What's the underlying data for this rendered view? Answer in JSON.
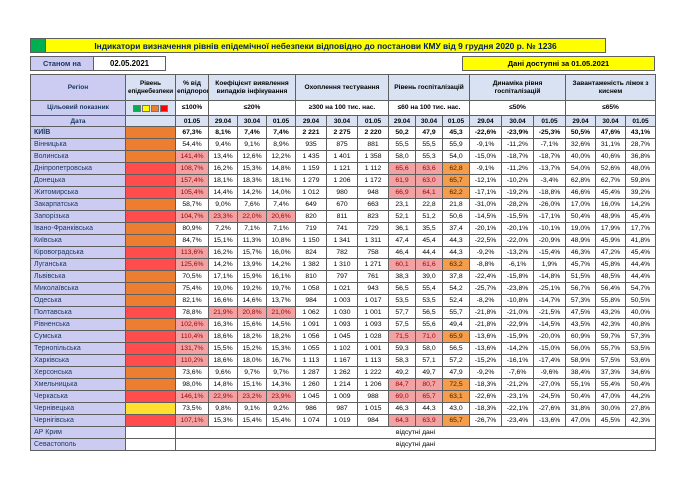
{
  "title": "Індикатори визначення рівнів епідемічної небезпеки відповідно до постанови КМУ від 9 грудня 2020 р. № 1236",
  "as_of": {
    "label": "Станом на",
    "date": "02.05.2021"
  },
  "available_note": "Дані доступні за 01.05.2021",
  "colors": {
    "title_bg": "#ffff00",
    "title_text": "#002060",
    "header_bg": "#d9e2f3",
    "region_col_bg": "#ccccf2",
    "green_marker": "#00b050",
    "level_orange": "#ed7d31",
    "level_red": "#ff4c4c",
    "level_yellow": "#ffe02e",
    "highlight_pink_bg": "#f2a2a2",
    "highlight_pink_text": "#9c0006",
    "highlight_orange_bg": "#f59d4a",
    "legend": [
      "#00b050",
      "#ffff00",
      "#ed7d31",
      "#ff0000"
    ]
  },
  "table": {
    "region_header": "Регіон",
    "level_header": "Рівень епіднебезпеки",
    "target_label": "Цільовий показник",
    "date_label": "Дата",
    "no_data_label": "відсутні дані",
    "groups": [
      {
        "key": "pct",
        "label": "% від епідпорогу",
        "target": "≤100%",
        "dates": [
          "01.05"
        ]
      },
      {
        "key": "coef",
        "label": "Коефіцієнт виявлення випадків інфікування",
        "target": "≤20%",
        "dates": [
          "29.04",
          "30.04",
          "01.05"
        ]
      },
      {
        "key": "test",
        "label": "Охоплення тестування",
        "target": "≥300 на 100 тис. нас.",
        "dates": [
          "29.04",
          "30.04",
          "01.05"
        ]
      },
      {
        "key": "hosp",
        "label": "Рівень госпіталізацій",
        "target": "≤60 на 100 тис. нас.",
        "dates": [
          "29.04",
          "30.04",
          "01.05"
        ]
      },
      {
        "key": "dyn",
        "label": "Динаміка рівня госпіталізацій",
        "target": "≤50%",
        "dates": [
          "29.04",
          "30.04",
          "01.05"
        ]
      },
      {
        "key": "bed",
        "label": "Завантаженість ліжок з киснем",
        "target": "≤65%",
        "dates": [
          "29.04",
          "30.04",
          "01.05"
        ]
      }
    ],
    "rows": [
      {
        "region": "КИЇВ",
        "bold": true,
        "level": "orange",
        "cells": [
          "67,3%",
          "8,1%",
          "7,4%",
          "7,4%",
          "2 221",
          "2 275",
          "2 220",
          "50,2",
          "47,9",
          "45,3",
          "-22,6%",
          "-23,9%",
          "-25,3%",
          "50,5%",
          "47,6%",
          "43,1%"
        ]
      },
      {
        "region": "Вінницька",
        "level": "orange",
        "cells": [
          "54,4%",
          "9,4%",
          "9,1%",
          "8,9%",
          "935",
          "875",
          "881",
          "55,5",
          "55,5",
          "55,9",
          "-9,1%",
          "-11,2%",
          "-7,1%",
          "32,6%",
          "31,1%",
          "28,7%"
        ]
      },
      {
        "region": "Волинська",
        "level": "orange",
        "cells": [
          "141,4%",
          "13,4%",
          "12,6%",
          "12,2%",
          "1 435",
          "1 401",
          "1 358",
          "58,0",
          "55,3",
          "54,0",
          "-15,0%",
          "-18,7%",
          "-18,7%",
          "40,0%",
          "40,6%",
          "36,8%"
        ]
      },
      {
        "region": "Дніпропетровська",
        "level": "red",
        "cells": [
          "108,7%",
          "16,2%",
          "15,3%",
          "14,8%",
          "1 159",
          "1 121",
          "1 112",
          "65,6",
          "63,6",
          "62,8",
          "-9,1%",
          "-11,2%",
          "-13,7%",
          "54,0%",
          "52,6%",
          "48,0%"
        ]
      },
      {
        "region": "Донецька",
        "level": "red",
        "cells": [
          "157,4%",
          "18,1%",
          "18,3%",
          "18,1%",
          "1 279",
          "1 206",
          "1 172",
          "61,9",
          "63,0",
          "65,7",
          "-12,1%",
          "-10,2%",
          "-3,4%",
          "62,8%",
          "62,7%",
          "59,8%"
        ]
      },
      {
        "region": "Житомирська",
        "level": "red",
        "cells": [
          "105,4%",
          "14,4%",
          "14,2%",
          "14,0%",
          "1 012",
          "980",
          "948",
          "66,9",
          "64,1",
          "62,2",
          "-17,1%",
          "-19,2%",
          "-18,8%",
          "46,6%",
          "45,4%",
          "39,2%"
        ]
      },
      {
        "region": "Закарпатська",
        "level": "orange",
        "cells": [
          "58,7%",
          "9,0%",
          "7,6%",
          "7,4%",
          "649",
          "670",
          "663",
          "23,1",
          "22,8",
          "21,8",
          "-31,0%",
          "-28,2%",
          "-26,0%",
          "17,0%",
          "16,0%",
          "14,2%"
        ]
      },
      {
        "region": "Запорізька",
        "level": "red",
        "cells": [
          "104,7%",
          "23,3%",
          "22,0%",
          "20,6%",
          "820",
          "811",
          "823",
          "52,1",
          "51,2",
          "50,6",
          "-14,5%",
          "-15,5%",
          "-17,1%",
          "50,4%",
          "48,9%",
          "45,4%"
        ]
      },
      {
        "region": "Івано-Франківська",
        "level": "orange",
        "cells": [
          "80,9%",
          "7,2%",
          "7,1%",
          "7,1%",
          "719",
          "741",
          "729",
          "36,1",
          "35,5",
          "37,4",
          "-20,1%",
          "-20,1%",
          "-10,1%",
          "19,0%",
          "17,9%",
          "17,7%"
        ]
      },
      {
        "region": "Київська",
        "level": "orange",
        "cells": [
          "84,7%",
          "15,1%",
          "11,3%",
          "10,8%",
          "1 150",
          "1 341",
          "1 311",
          "47,4",
          "45,4",
          "44,3",
          "-22,5%",
          "-22,0%",
          "-20,9%",
          "48,9%",
          "45,9%",
          "41,8%"
        ]
      },
      {
        "region": "Кіровоградська",
        "level": "red",
        "cells": [
          "113,6%",
          "16,2%",
          "15,7%",
          "16,0%",
          "824",
          "782",
          "758",
          "46,4",
          "44,4",
          "44,3",
          "-9,2%",
          "-13,2%",
          "-15,4%",
          "46,3%",
          "47,2%",
          "45,4%"
        ]
      },
      {
        "region": "Луганська",
        "level": "red",
        "cells": [
          "125,6%",
          "14,2%",
          "13,9%",
          "14,2%",
          "1 382",
          "1 310",
          "1 271",
          "60,1",
          "61,6",
          "63,2",
          "-8,8%",
          "-6,1%",
          "1,9%",
          "45,7%",
          "45,8%",
          "44,4%"
        ]
      },
      {
        "region": "Львівська",
        "level": "orange",
        "cells": [
          "70,5%",
          "17,1%",
          "15,9%",
          "16,1%",
          "810",
          "797",
          "761",
          "38,3",
          "39,0",
          "37,8",
          "-22,4%",
          "-15,8%",
          "-14,8%",
          "51,5%",
          "48,5%",
          "44,4%"
        ]
      },
      {
        "region": "Миколаївська",
        "level": "orange",
        "cells": [
          "75,4%",
          "19,0%",
          "19,2%",
          "19,7%",
          "1 058",
          "1 021",
          "943",
          "56,5",
          "55,4",
          "54,2",
          "-25,7%",
          "-23,8%",
          "-25,1%",
          "56,7%",
          "56,4%",
          "54,7%"
        ]
      },
      {
        "region": "Одеська",
        "level": "orange",
        "cells": [
          "82,1%",
          "16,6%",
          "14,6%",
          "13,7%",
          "984",
          "1 003",
          "1 017",
          "53,5",
          "53,5",
          "52,4",
          "-8,2%",
          "-10,8%",
          "-14,7%",
          "57,3%",
          "55,8%",
          "50,5%"
        ]
      },
      {
        "region": "Полтавська",
        "level": "red",
        "cells": [
          "78,8%",
          "21,9%",
          "20,8%",
          "21,0%",
          "1 062",
          "1 030",
          "1 001",
          "57,7",
          "56,5",
          "55,7",
          "-21,8%",
          "-21,0%",
          "-21,5%",
          "47,5%",
          "43,2%",
          "40,0%"
        ]
      },
      {
        "region": "Рівненська",
        "level": "orange",
        "cells": [
          "102,6%",
          "16,3%",
          "15,6%",
          "14,5%",
          "1 091",
          "1 093",
          "1 093",
          "57,5",
          "55,6",
          "49,4",
          "-21,8%",
          "-22,9%",
          "-14,5%",
          "43,5%",
          "42,3%",
          "40,8%"
        ]
      },
      {
        "region": "Сумська",
        "level": "red",
        "cells": [
          "110,4%",
          "18,6%",
          "18,2%",
          "18,2%",
          "1 056",
          "1 045",
          "1 028",
          "71,5",
          "71,0",
          "65,9",
          "-13,6%",
          "-15,9%",
          "-20,0%",
          "60,9%",
          "59,7%",
          "57,3%"
        ]
      },
      {
        "region": "Тернопільська",
        "level": "red",
        "cells": [
          "131,7%",
          "15,5%",
          "15,2%",
          "15,3%",
          "1 055",
          "1 102",
          "1 001",
          "59,3",
          "58,0",
          "56,5",
          "-13,6%",
          "-14,2%",
          "-15,0%",
          "56,0%",
          "55,7%",
          "53,5%"
        ]
      },
      {
        "region": "Харківська",
        "level": "red",
        "cells": [
          "110,2%",
          "18,6%",
          "18,0%",
          "16,7%",
          "1 113",
          "1 167",
          "1 113",
          "58,3",
          "57,1",
          "57,2",
          "-15,2%",
          "-16,1%",
          "-17,4%",
          "58,9%",
          "57,5%",
          "53,6%"
        ]
      },
      {
        "region": "Херсонська",
        "level": "orange",
        "cells": [
          "73,6%",
          "9,6%",
          "9,7%",
          "9,7%",
          "1 287",
          "1 262",
          "1 222",
          "49,2",
          "49,7",
          "47,9",
          "-9,2%",
          "-7,6%",
          "-9,6%",
          "38,4%",
          "37,3%",
          "34,6%"
        ]
      },
      {
        "region": "Хмельницька",
        "level": "orange",
        "cells": [
          "98,0%",
          "14,8%",
          "15,1%",
          "14,3%",
          "1 260",
          "1 214",
          "1 206",
          "84,7",
          "80,7",
          "72,5",
          "-18,3%",
          "-21,2%",
          "-27,0%",
          "55,1%",
          "55,4%",
          "50,4%"
        ]
      },
      {
        "region": "Черкаська",
        "level": "red",
        "cells": [
          "146,1%",
          "22,9%",
          "23,2%",
          "23,9%",
          "1 045",
          "1 009",
          "988",
          "69,0",
          "65,7",
          "63,1",
          "-22,6%",
          "-23,1%",
          "-24,5%",
          "50,4%",
          "47,0%",
          "44,2%"
        ]
      },
      {
        "region": "Чернівецька",
        "level": "yellow",
        "cells": [
          "73,5%",
          "9,8%",
          "9,1%",
          "9,2%",
          "986",
          "987",
          "1 015",
          "46,3",
          "44,3",
          "43,0",
          "-18,3%",
          "-22,1%",
          "-27,6%",
          "31,8%",
          "30,0%",
          "27,8%"
        ]
      },
      {
        "region": "Чернігівська",
        "level": "red",
        "cells": [
          "107,1%",
          "15,3%",
          "15,4%",
          "15,4%",
          "1 074",
          "1 019",
          "984",
          "64,3",
          "63,9",
          "65,7",
          "-26,7%",
          "-23,4%",
          "-13,6%",
          "47,0%",
          "45,5%",
          "42,3%"
        ]
      },
      {
        "region": "АР Крим",
        "no_data": true
      },
      {
        "region": "Севастополь",
        "no_data": true
      }
    ]
  }
}
